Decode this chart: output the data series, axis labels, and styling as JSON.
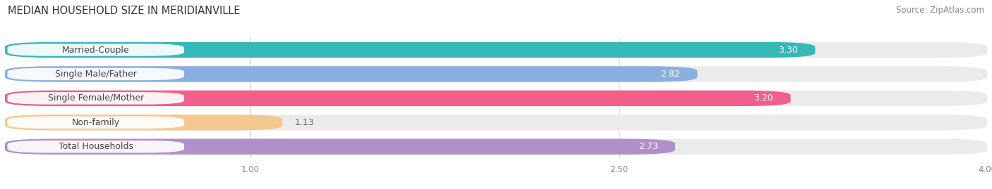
{
  "title": "MEDIAN HOUSEHOLD SIZE IN MERIDIANVILLE",
  "source": "Source: ZipAtlas.com",
  "categories": [
    "Married-Couple",
    "Single Male/Father",
    "Single Female/Mother",
    "Non-family",
    "Total Households"
  ],
  "values": [
    3.3,
    2.82,
    3.2,
    1.13,
    2.73
  ],
  "bar_colors": [
    "#36b8b8",
    "#8aaee0",
    "#f0608a",
    "#f5c890",
    "#b090c8"
  ],
  "row_bg_color": "#ebebeb",
  "xlim_min": 0.0,
  "xlim_max": 4.0,
  "xticks": [
    1.0,
    2.5,
    4.0
  ],
  "title_fontsize": 10.5,
  "source_fontsize": 8.5,
  "label_fontsize": 9,
  "value_fontsize": 9,
  "background_color": "#ffffff",
  "label_bg_color": "#ffffff",
  "label_text_color": "#444444",
  "value_color_inside": "#ffffff",
  "value_color_outside": "#666666",
  "grid_color": "#d0d0d0",
  "tick_color": "#888888"
}
